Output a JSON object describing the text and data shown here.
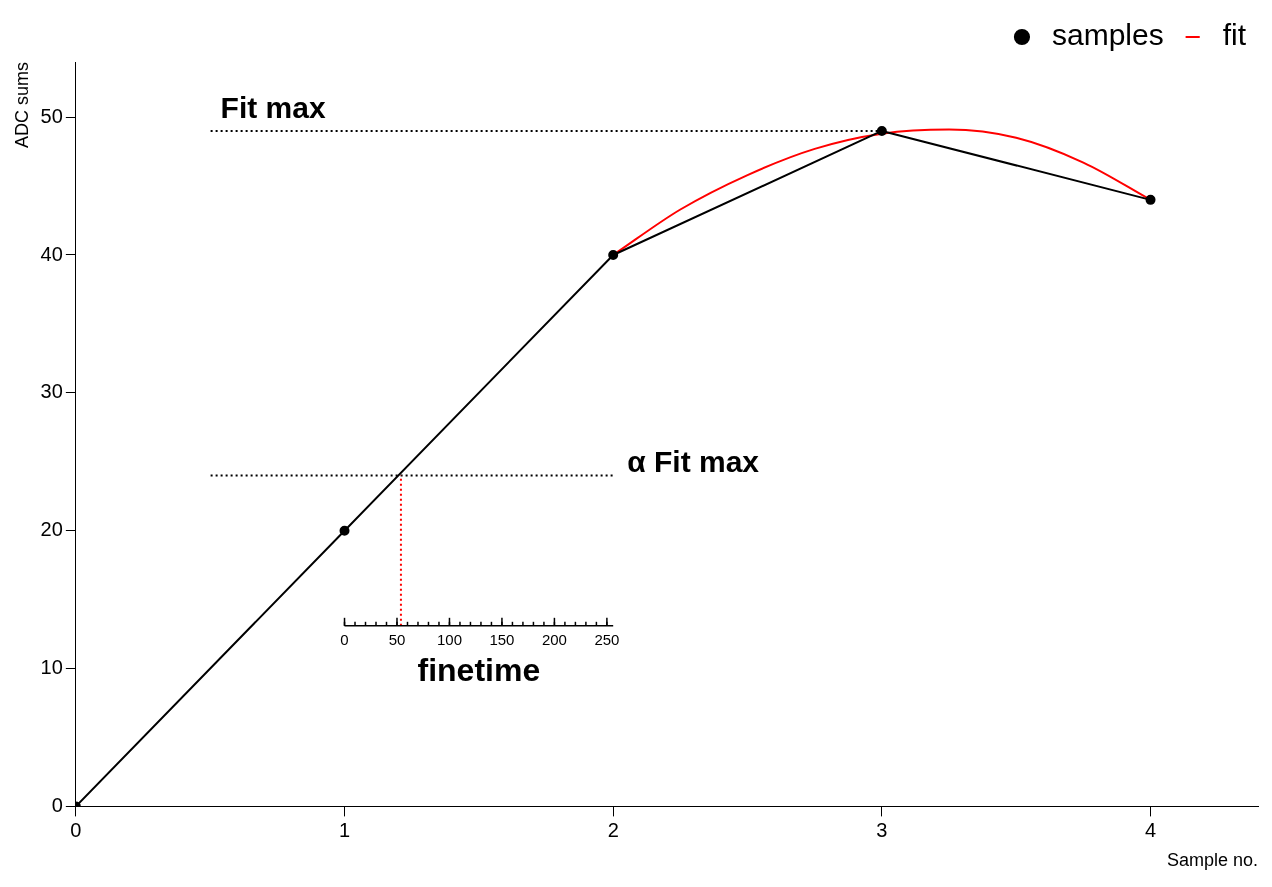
{
  "chart_data": {
    "type": "line",
    "xlabel": "Sample no.",
    "ylabel": "ADC sums",
    "x2label": "finetime",
    "xlim": [
      0,
      4.4
    ],
    "xticks": [
      0,
      1,
      2,
      3,
      4
    ],
    "ylim": [
      0,
      54
    ],
    "yticks": [
      0,
      10,
      20,
      30,
      40,
      50
    ],
    "x2lim": [
      0,
      256
    ],
    "x2ticks": [
      0,
      50,
      100,
      150,
      200,
      250
    ],
    "series": [
      {
        "name": "samples",
        "type": "line",
        "color": "#000000",
        "marker": "circle",
        "x": [
          0,
          1,
          2,
          3,
          4
        ],
        "values": [
          0,
          20,
          40,
          49,
          44
        ]
      },
      {
        "name": "fit",
        "type": "line",
        "color": "#ff0000",
        "marker": "none",
        "x": [
          2,
          2.25,
          2.5,
          2.75,
          3,
          3.25,
          3.5,
          3.75,
          4
        ],
        "values": [
          40,
          43.3,
          45.8,
          47.7,
          48.8,
          49.1,
          48.5,
          46.7,
          44
        ]
      }
    ],
    "ref_lines": [
      {
        "axis": "y",
        "value": 49,
        "label": "Fit max",
        "color": "#000000",
        "line_style": "dotted"
      },
      {
        "axis": "y",
        "value": 24,
        "label": "α Fit max",
        "color": "#000000",
        "line_style": "dotted"
      },
      {
        "axis": "x",
        "value": 1.21,
        "label": null,
        "color": "#ff0000",
        "line_style": "dotted"
      }
    ],
    "grid": false,
    "legend": "top right"
  }
}
